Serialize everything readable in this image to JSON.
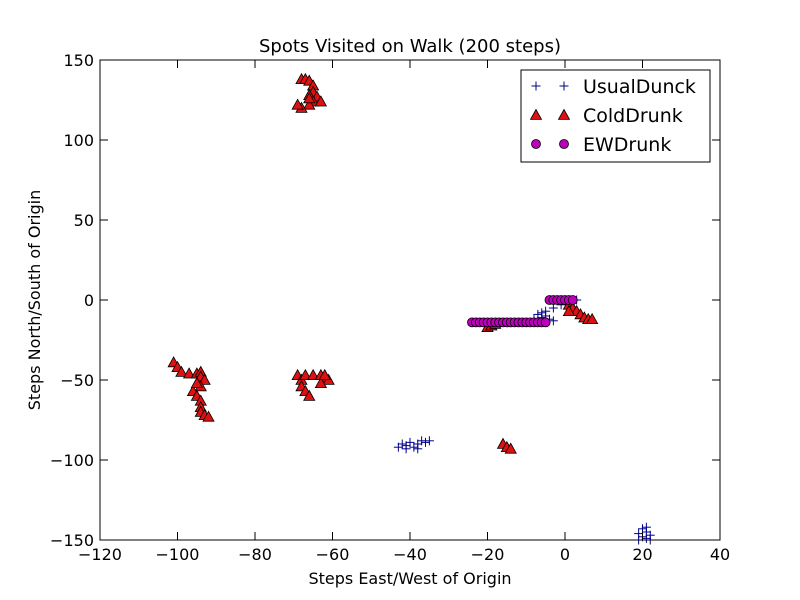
{
  "chart_data": {
    "type": "scatter",
    "title": "Spots Visited on Walk (200 steps)",
    "xlabel": "Steps East/West of Origin",
    "ylabel": "Steps North/South of Origin",
    "xlim": [
      -120,
      40
    ],
    "ylim": [
      -150,
      150
    ],
    "x_ticks": [
      -120,
      -100,
      -80,
      -60,
      -40,
      -20,
      0,
      20,
      40
    ],
    "y_ticks": [
      -150,
      -100,
      -50,
      0,
      50,
      100,
      150
    ],
    "x_tick_labels": [
      "−120",
      "−100",
      "−80",
      "−60",
      "−40",
      "−20",
      "0",
      "20",
      "40"
    ],
    "y_tick_labels": [
      "−150",
      "−100",
      "−50",
      "0",
      "50",
      "100",
      "150"
    ],
    "grid": false,
    "legend_position": "top-right",
    "series": [
      {
        "name": "UsualDunck",
        "marker": "plus",
        "color": "#00008b",
        "points": [
          [
            0,
            0
          ],
          [
            1,
            0
          ],
          [
            2,
            0
          ],
          [
            3,
            0
          ],
          [
            -1,
            -3
          ],
          [
            -3,
            -5
          ],
          [
            -5,
            -7
          ],
          [
            -6,
            -8
          ],
          [
            -7,
            -9
          ],
          [
            -5,
            -10
          ],
          [
            -4,
            -12
          ],
          [
            -3,
            -13
          ],
          [
            -7,
            -13
          ],
          [
            -8,
            -12
          ],
          [
            -6,
            -11
          ],
          [
            -43,
            -92
          ],
          [
            -42,
            -90
          ],
          [
            -41,
            -91
          ],
          [
            -40,
            -89
          ],
          [
            -39,
            -92
          ],
          [
            -38,
            -90
          ],
          [
            -37,
            -88
          ],
          [
            -36,
            -89
          ],
          [
            -35,
            -88
          ],
          [
            -41,
            -93
          ],
          [
            -38,
            -93
          ],
          [
            19,
            -150
          ],
          [
            20,
            -148
          ],
          [
            20,
            -143
          ],
          [
            21,
            -145
          ],
          [
            21,
            -142
          ],
          [
            22,
            -147
          ],
          [
            19,
            -146
          ],
          [
            22,
            -150
          ],
          [
            21,
            -149
          ]
        ]
      },
      {
        "name": "ColdDrunk",
        "marker": "triangle",
        "color": "#dd1111",
        "points": [
          [
            -68,
            138
          ],
          [
            -67,
            138
          ],
          [
            -66,
            137
          ],
          [
            -65,
            134
          ],
          [
            -65,
            130
          ],
          [
            -66,
            128
          ],
          [
            -64,
            127
          ],
          [
            -65,
            124
          ],
          [
            -66,
            122
          ],
          [
            -68,
            120
          ],
          [
            -69,
            122
          ],
          [
            -63,
            124
          ],
          [
            -66,
            126
          ],
          [
            -101,
            -39
          ],
          [
            -100,
            -42
          ],
          [
            -99,
            -45
          ],
          [
            -97,
            -46
          ],
          [
            -95,
            -46
          ],
          [
            -94,
            -45
          ],
          [
            -94,
            -48
          ],
          [
            -93,
            -50
          ],
          [
            -94,
            -54
          ],
          [
            -96,
            -57
          ],
          [
            -95,
            -60
          ],
          [
            -94,
            -63
          ],
          [
            -94,
            -67
          ],
          [
            -94,
            -70
          ],
          [
            -93,
            -72
          ],
          [
            -92,
            -73
          ],
          [
            -95,
            -52
          ],
          [
            -69,
            -47
          ],
          [
            -68,
            -50
          ],
          [
            -68,
            -54
          ],
          [
            -67,
            -57
          ],
          [
            -66,
            -60
          ],
          [
            -67,
            -47
          ],
          [
            -65,
            -47
          ],
          [
            -63,
            -47
          ],
          [
            -62,
            -49
          ],
          [
            -61,
            -50
          ],
          [
            -63,
            -52
          ],
          [
            -62,
            -47
          ],
          [
            -20,
            -17
          ],
          [
            -19,
            -16
          ],
          [
            -18,
            -15
          ],
          [
            -16,
            -90
          ],
          [
            -15,
            -92
          ],
          [
            -14,
            -93
          ],
          [
            1,
            -3
          ],
          [
            2,
            -5
          ],
          [
            3,
            -7
          ],
          [
            4,
            -9
          ],
          [
            5,
            -11
          ],
          [
            6,
            -12
          ],
          [
            7,
            -12
          ],
          [
            1,
            -7
          ]
        ]
      },
      {
        "name": "EWDrunk",
        "marker": "circle",
        "color": "#bb00bb",
        "points": [
          [
            -24,
            -14
          ],
          [
            -23,
            -14
          ],
          [
            -22,
            -14
          ],
          [
            -21,
            -14
          ],
          [
            -20,
            -14
          ],
          [
            -19,
            -14
          ],
          [
            -18,
            -14
          ],
          [
            -17,
            -14
          ],
          [
            -16,
            -14
          ],
          [
            -15,
            -14
          ],
          [
            -14,
            -14
          ],
          [
            -13,
            -14
          ],
          [
            -12,
            -14
          ],
          [
            -11,
            -14
          ],
          [
            -10,
            -14
          ],
          [
            -9,
            -14
          ],
          [
            -8,
            -14
          ],
          [
            -7,
            -14
          ],
          [
            -6,
            -14
          ],
          [
            -5,
            -14
          ],
          [
            -4,
            0
          ],
          [
            -3,
            0
          ],
          [
            -2,
            0
          ],
          [
            -1,
            0
          ],
          [
            0,
            0
          ],
          [
            1,
            0
          ],
          [
            2,
            0
          ]
        ]
      }
    ]
  }
}
